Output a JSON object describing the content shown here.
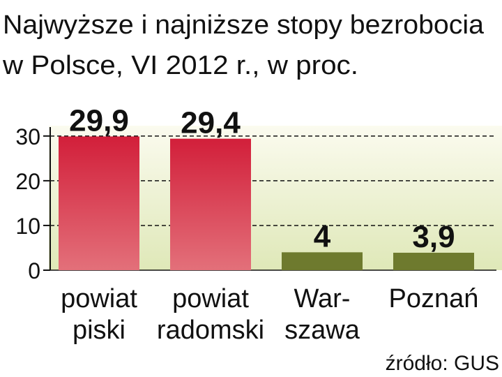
{
  "chart_data": {
    "type": "bar",
    "title": [
      "Najwyższe i najniższe stopy bezrobocia",
      "w Polsce, VI 2012 r., w proc."
    ],
    "categories": [
      [
        "powiat",
        "piski"
      ],
      [
        "powiat",
        "radomski"
      ],
      [
        "War-",
        "szawa"
      ],
      [
        "Poznań"
      ]
    ],
    "values": [
      29.9,
      29.4,
      4,
      3.9
    ],
    "value_labels": [
      "29,9",
      "29,4",
      "4",
      "3,9"
    ],
    "colors": [
      "#d4354a",
      "#d4354a",
      "#6e7a2e",
      "#6e7a2e"
    ],
    "ylim": [
      0,
      32
    ],
    "yticks": [
      0,
      10,
      20,
      30
    ],
    "grid": true,
    "source": "źródło: GUS"
  }
}
